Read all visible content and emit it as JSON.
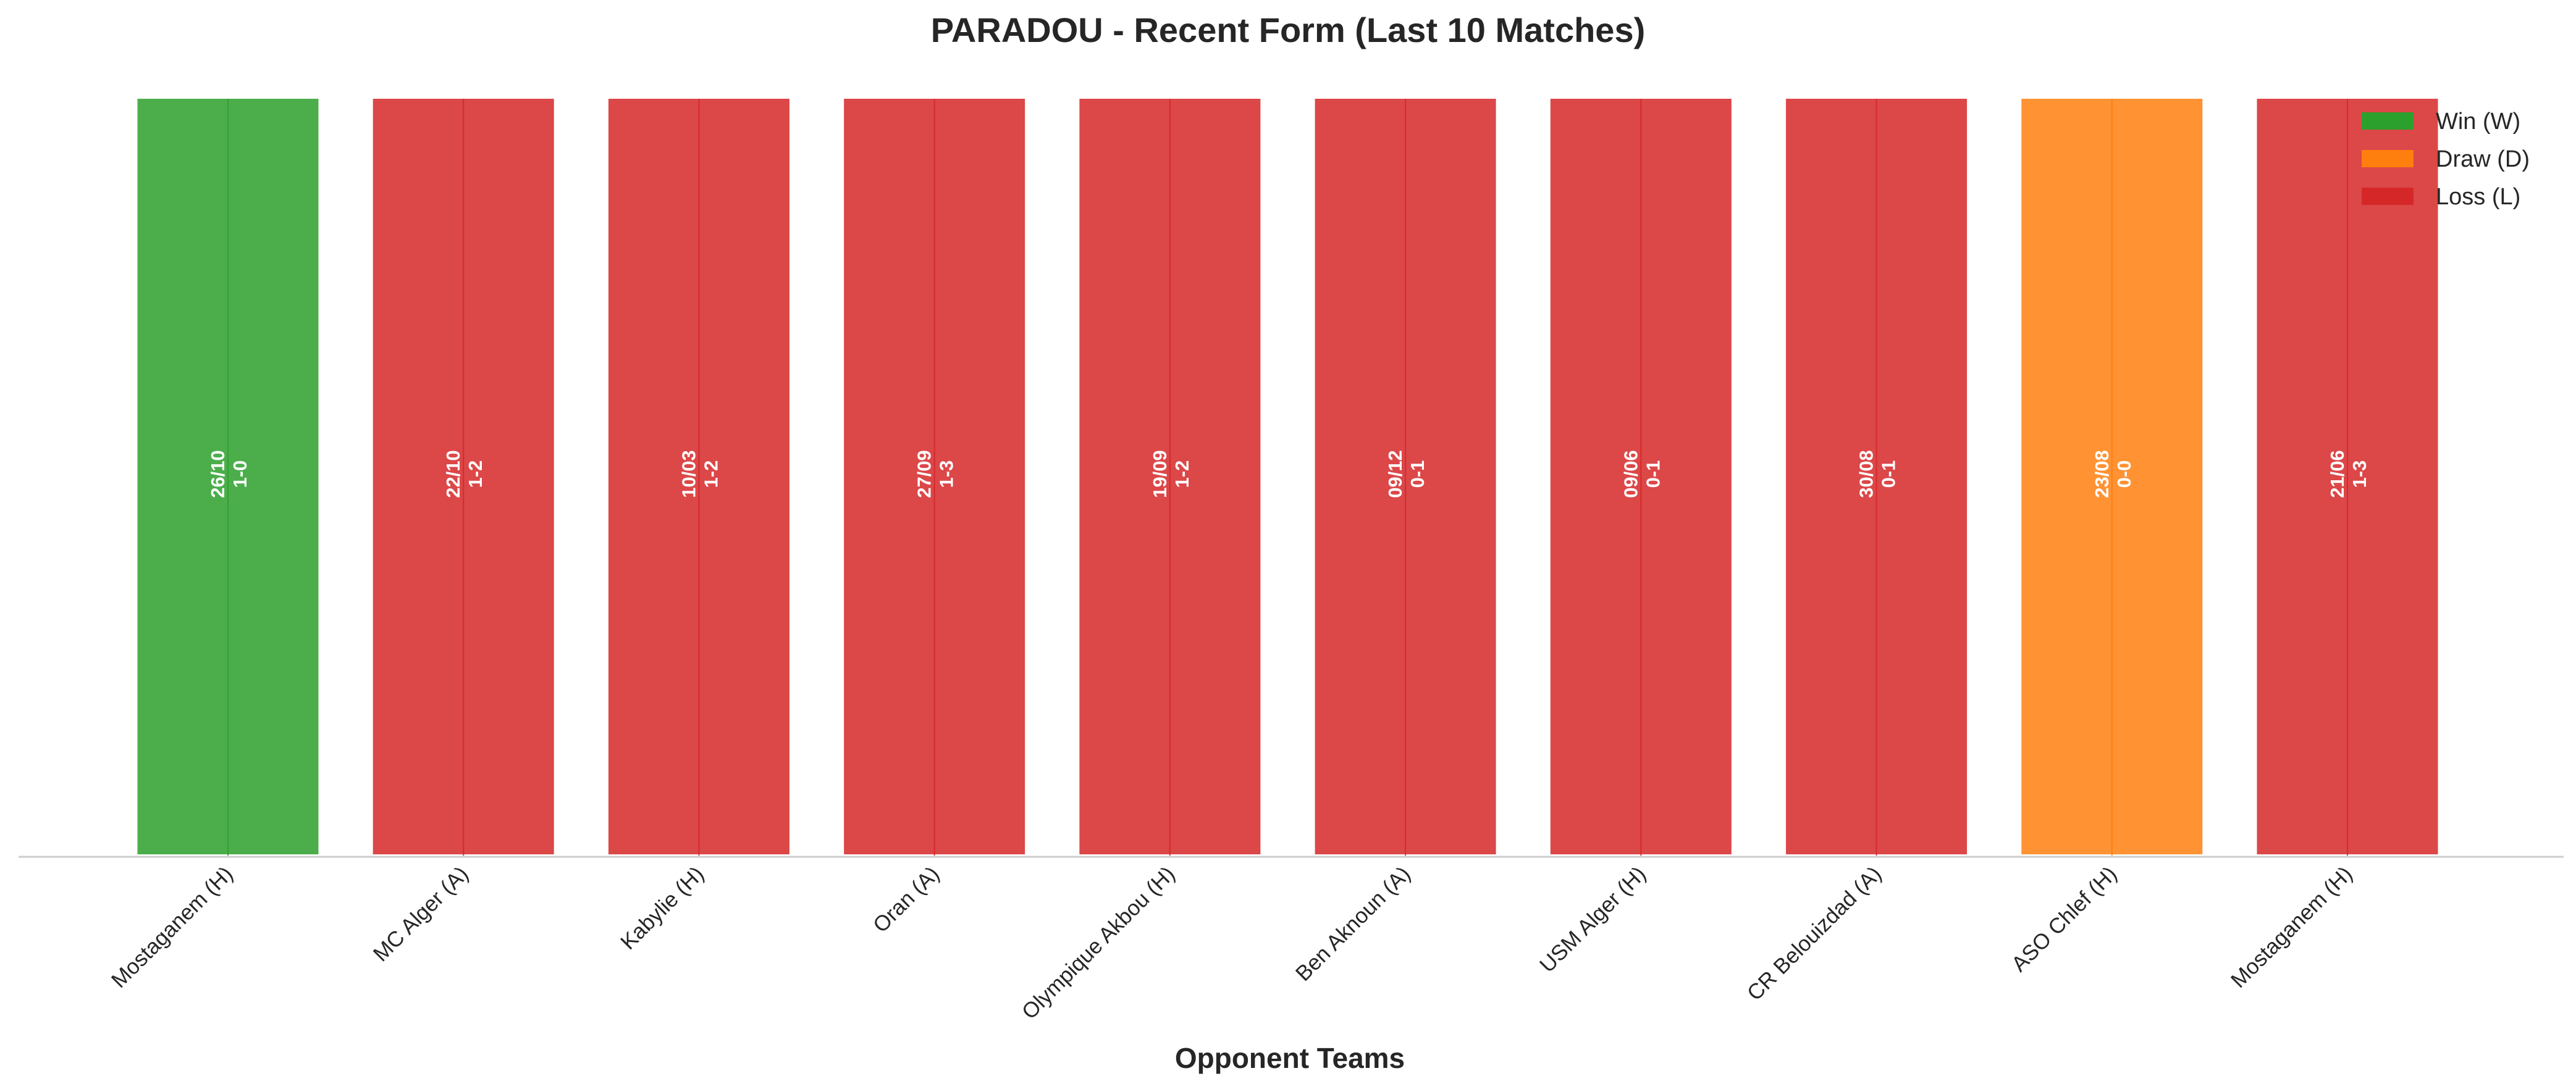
{
  "chart_data": {
    "type": "bar",
    "title": "PARADOU - Recent Form (Last 10 Matches)",
    "xlabel": "Opponent Teams",
    "ylabel": "",
    "ylim": [
      0,
      1
    ],
    "grid": false,
    "legend_position": "top-right",
    "categories": [
      "Mostaganem (H)",
      "MC Alger (A)",
      "Kabylie (H)",
      "Oran (A)",
      "Olympique Akbou (H)",
      "Ben Aknoun (A)",
      "USM Alger (H)",
      "CR Belouizdad (A)",
      "ASO Chlef (H)",
      "Mostaganem (H)"
    ],
    "values": [
      1,
      1,
      1,
      1,
      1,
      1,
      1,
      1,
      1,
      1
    ],
    "results": [
      "W",
      "L",
      "L",
      "L",
      "L",
      "L",
      "L",
      "L",
      "D",
      "L"
    ],
    "dates": [
      "26/10",
      "22/10",
      "10/03",
      "27/09",
      "19/09",
      "09/12",
      "09/06",
      "30/08",
      "23/08",
      "21/06"
    ],
    "scores": [
      "1-0",
      "1-2",
      "1-2",
      "1-3",
      "1-2",
      "0-1",
      "0-1",
      "0-1",
      "0-0",
      "1-3"
    ],
    "legend": [
      {
        "key": "W",
        "label": "Win (W)"
      },
      {
        "key": "D",
        "label": "Draw (D)"
      },
      {
        "key": "L",
        "label": "Loss (L)"
      }
    ],
    "colors": {
      "W": "#2ca02c",
      "D": "#ff7f0e",
      "L": "#d62728"
    }
  }
}
